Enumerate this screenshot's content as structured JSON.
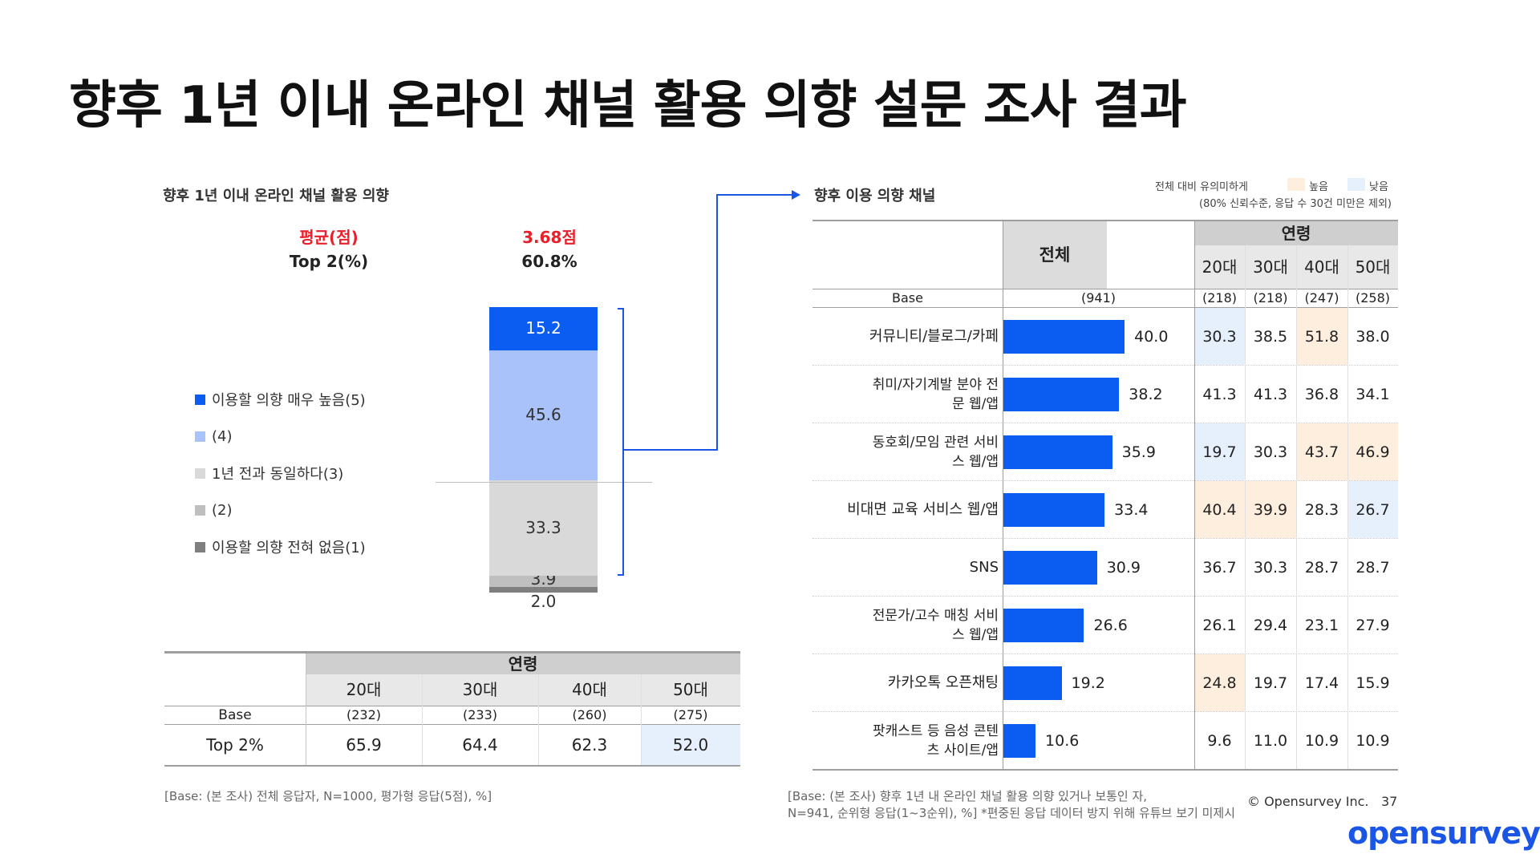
{
  "page": {
    "title": "향후 1년 이내 온라인 채널 활용 의향 설문 조사 결과",
    "logo": "opensurvey",
    "copyright": "© Opensurvey Inc.",
    "page_number": "37"
  },
  "left": {
    "subtitle": "향후 1년 이내 온라인 채널 활용 의향",
    "avg_label": "평균(점)",
    "avg_value": "3.68점",
    "top2_label": "Top 2(%)",
    "top2_value": "60.8%",
    "legend": [
      {
        "label": "이용할 의향 매우 높음(5)",
        "color": "#0b5cf0"
      },
      {
        "label": "(4)",
        "color": "#a9c3fa"
      },
      {
        "label": "1년 전과 동일하다(3)",
        "color": "#d9d9d9"
      },
      {
        "label": "(2)",
        "color": "#bfbfbf"
      },
      {
        "label": "이용할 의향 전혀 없음(1)",
        "color": "#7f7f7f"
      }
    ],
    "age_table": {
      "group_header": "연령",
      "ages": [
        "20대",
        "30대",
        "40대",
        "50대"
      ],
      "base_label": "Base",
      "bases": [
        "(232)",
        "(233)",
        "(260)",
        "(275)"
      ],
      "row_label": "Top 2%",
      "values": [
        "65.9",
        "64.4",
        "62.3",
        "52.0"
      ]
    },
    "note": "[Base: (본 조사) 전체 응답자, N=1000, 평가형 응답(5점), %]"
  },
  "right": {
    "subtitle": "향후 이용 의향 채널",
    "sig_legend_text": "전체 대비 유의미하게",
    "sig_high_label": "높음",
    "sig_low_label": "낮음",
    "sig_note": "(80% 신뢰수준, 응답 수 30건 미만은 제외)",
    "total_header": "전체",
    "age_group_header": "연령",
    "ages": [
      "20대",
      "30대",
      "40대",
      "50대"
    ],
    "base_label": "Base",
    "total_base": "(941)",
    "age_bases": [
      "(218)",
      "(218)",
      "(247)",
      "(258)"
    ],
    "note_line1": "[Base: (본 조사) 향후 1년 내 온라인 채널 활용 의향 있거나 보통인 자,",
    "note_line2": "N=941, 순위형 응답(1~3순위), %] *편중된 응답 데이터 방지 위해 유튜브 보기 미제시"
  },
  "chart_data": [
    {
      "type": "bar",
      "subtype": "stacked-100",
      "title": "향후 1년 이내 온라인 채널 활용 의향",
      "series": [
        {
          "name": "이용할 의향 전혀 없음(1)",
          "values": [
            2.0
          ],
          "label": "2.0",
          "color": "#7f7f7f"
        },
        {
          "name": "(2)",
          "values": [
            3.9
          ],
          "label": "3.9",
          "color": "#bfbfbf"
        },
        {
          "name": "1년 전과 동일하다(3)",
          "values": [
            33.3
          ],
          "label": "33.3",
          "color": "#d9d9d9"
        },
        {
          "name": "(4)",
          "values": [
            45.6
          ],
          "label": "45.6",
          "color": "#a9c3fa"
        },
        {
          "name": "이용할 의향 매우 높음(5)",
          "values": [
            15.2
          ],
          "label": "15.2",
          "color": "#0b5cf0"
        }
      ],
      "ylim": [
        0,
        100
      ]
    },
    {
      "type": "bar",
      "subtype": "horizontal",
      "title": "향후 이용 의향 채널",
      "xlim": [
        0,
        45
      ],
      "rows": [
        {
          "category": "커뮤니티/블로그/카페",
          "total": 40.0,
          "label": "40.0",
          "by_age": [
            "30.3",
            "38.5",
            "51.8",
            "38.0"
          ],
          "sig": [
            "low",
            "",
            "high",
            ""
          ]
        },
        {
          "category": "취미/자기계발 분야 전문 웹/앱",
          "total": 38.2,
          "label": "38.2",
          "by_age": [
            "41.3",
            "41.3",
            "36.8",
            "34.1"
          ],
          "sig": [
            "",
            "",
            "",
            ""
          ]
        },
        {
          "category": "동호회/모임 관련 서비스 웹/앱",
          "total": 35.9,
          "label": "35.9",
          "by_age": [
            "19.7",
            "30.3",
            "43.7",
            "46.9"
          ],
          "sig": [
            "low",
            "",
            "high",
            "high"
          ]
        },
        {
          "category": "비대면 교육 서비스 웹/앱",
          "total": 33.4,
          "label": "33.4",
          "by_age": [
            "40.4",
            "39.9",
            "28.3",
            "26.7"
          ],
          "sig": [
            "high",
            "high",
            "",
            "low"
          ]
        },
        {
          "category": "SNS",
          "total": 30.9,
          "label": "30.9",
          "by_age": [
            "36.7",
            "30.3",
            "28.7",
            "28.7"
          ],
          "sig": [
            "",
            "",
            "",
            ""
          ]
        },
        {
          "category": "전문가/고수 매칭 서비스 웹/앱",
          "total": 26.6,
          "label": "26.6",
          "by_age": [
            "26.1",
            "29.4",
            "23.1",
            "27.9"
          ],
          "sig": [
            "",
            "",
            "",
            ""
          ]
        },
        {
          "category": "카카오톡 오픈채팅",
          "total": 19.2,
          "label": "19.2",
          "by_age": [
            "24.8",
            "19.7",
            "17.4",
            "15.9"
          ],
          "sig": [
            "high",
            "",
            "",
            ""
          ]
        },
        {
          "category": "팟캐스트 등 음성 콘텐츠 사이트/앱",
          "total": 10.6,
          "label": "10.6",
          "by_age": [
            "9.6",
            "11.0",
            "10.9",
            "10.9"
          ],
          "sig": [
            "",
            "",
            "",
            ""
          ]
        }
      ]
    }
  ],
  "colors": {
    "accent_blue": "#0b5cf0",
    "light_blue": "#a9c3fa",
    "highlight_high": "#fdeedd",
    "highlight_low": "#e6effc",
    "header_gray": "#dcdcdc",
    "avg_red": "#e8202a",
    "logo_blue": "#1a55e6"
  },
  "icons": {
    "arrow": "arrow-right-icon",
    "bracket": "bracket-icon"
  }
}
